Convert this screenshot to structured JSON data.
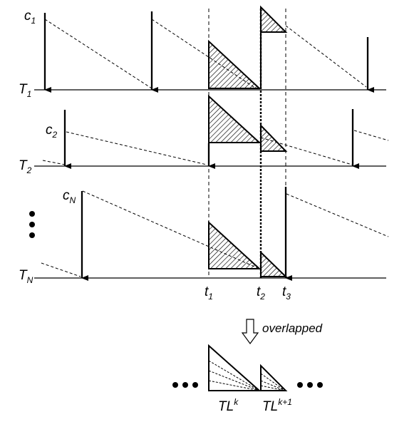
{
  "rows": [
    {
      "label": "T",
      "sub": "1",
      "slot_label": "c",
      "slot_sub": "1"
    },
    {
      "label": "T",
      "sub": "2",
      "slot_label": "c",
      "slot_sub": "2"
    },
    {
      "label": "T",
      "sub": "N",
      "slot_label": "c",
      "slot_sub": "N"
    }
  ],
  "times": [
    {
      "label": "t",
      "sub": "1"
    },
    {
      "label": "t",
      "sub": "2"
    },
    {
      "label": "t",
      "sub": "3"
    }
  ],
  "overlap_caption": "overlapped",
  "outputs": [
    {
      "label": "TL",
      "sup": "k"
    },
    {
      "label": "TL",
      "sup": "k+1"
    }
  ],
  "colors": {
    "ink": "#000000",
    "background": "#ffffff"
  },
  "icons": {
    "ellipsis_vertical": "three-dots-vertical",
    "ellipsis_horizontal": "three-dots-horizontal",
    "overlap_arrow": "hollow-down-arrow"
  }
}
